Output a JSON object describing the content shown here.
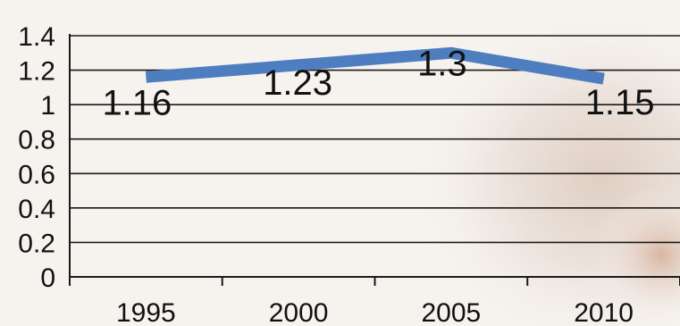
{
  "chart_data": {
    "type": "line",
    "categories": [
      "1995",
      "2000",
      "2005",
      "2010"
    ],
    "series": [
      {
        "values": [
          1.16,
          1.23,
          1.3,
          1.15
        ],
        "data_labels": [
          "1.16",
          "1.23",
          "1.3",
          "1.15"
        ],
        "color": "#4f7ec0"
      }
    ],
    "y_ticks": [
      "0",
      "0.2",
      "0.4",
      "0.6",
      "0.8",
      "1",
      "1.2",
      "1.4"
    ],
    "ylim": [
      0,
      1.4
    ],
    "grid": true,
    "legend": "none",
    "title": "",
    "xlabel": "",
    "ylabel": ""
  }
}
